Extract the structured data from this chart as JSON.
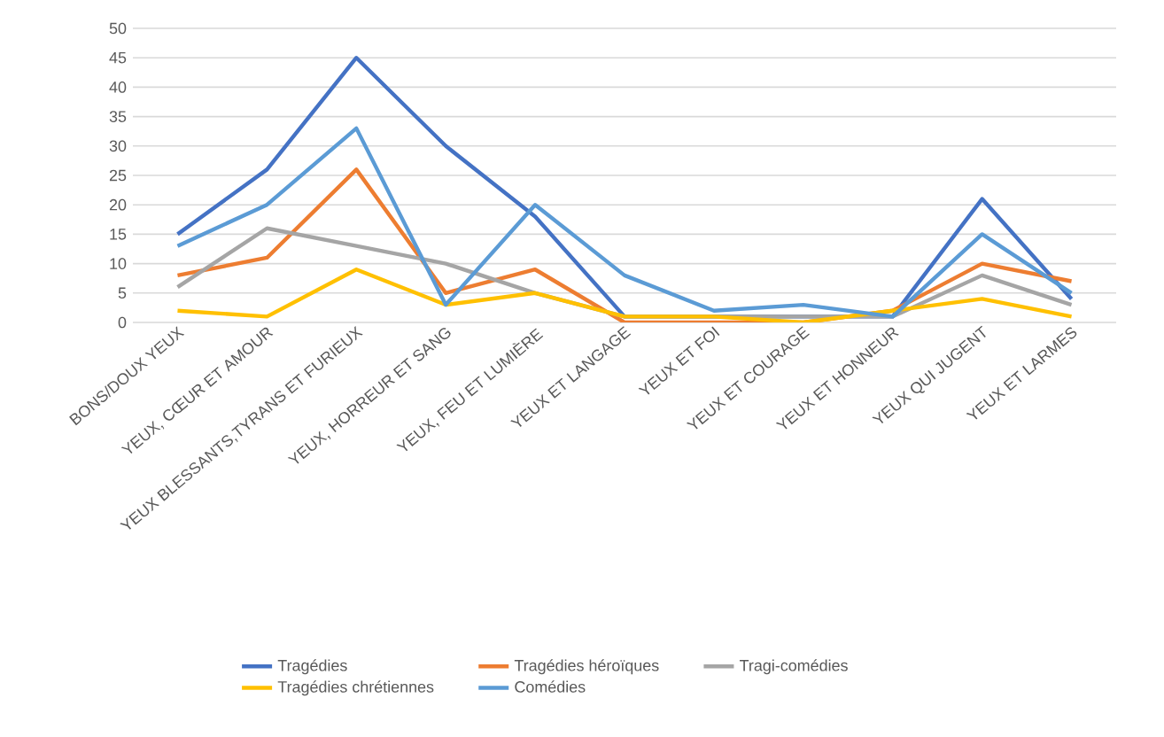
{
  "chart_data": {
    "type": "line",
    "categories": [
      "BONS/DOUX YEUX",
      "YEUX, CŒUR ET AMOUR",
      "YEUX BLESSANTS,TYRANS ET FURIEUX",
      "YEUX, HORREUR ET SANG",
      "YEUX, FEU ET LUMIÈRE",
      "YEUX ET LANGAGE",
      "YEUX ET FOI",
      "YEUX ET COURAGE",
      "YEUX ET HONNEUR",
      "YEUX QUI JUGENT",
      "YEUX ET LARMES"
    ],
    "series": [
      {
        "name": "Tragédies",
        "color": "#4472c4",
        "values": [
          15,
          26,
          45,
          30,
          18,
          1,
          1,
          1,
          1,
          21,
          4
        ]
      },
      {
        "name": "Tragédies héroïques",
        "color": "#ed7d31",
        "values": [
          8,
          11,
          26,
          5,
          9,
          0,
          0,
          0,
          2,
          10,
          7
        ]
      },
      {
        "name": "Tragi-comédies",
        "color": "#a5a5a5",
        "values": [
          6,
          16,
          13,
          10,
          5,
          1,
          1,
          1,
          1,
          8,
          3
        ]
      },
      {
        "name": "Tragédies chrétiennes",
        "color": "#ffc000",
        "values": [
          2,
          1,
          9,
          3,
          5,
          1,
          1,
          0,
          2,
          4,
          1
        ]
      },
      {
        "name": "Comédies",
        "color": "#5b9bd5",
        "values": [
          13,
          20,
          33,
          3,
          20,
          8,
          2,
          3,
          1,
          15,
          5
        ]
      }
    ],
    "ylim": [
      0,
      50
    ],
    "yticks": [
      0,
      5,
      10,
      15,
      20,
      25,
      30,
      35,
      40,
      45,
      50
    ],
    "grid": "y",
    "legend": "bottom",
    "marker": "none",
    "line_style": "solid"
  }
}
